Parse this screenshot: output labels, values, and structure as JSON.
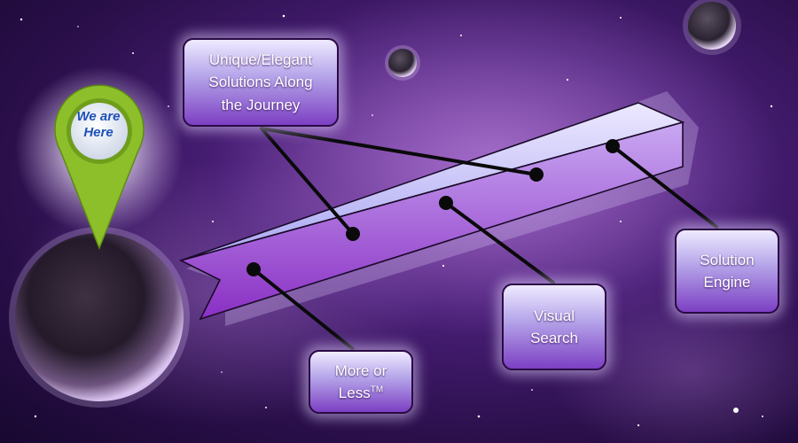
{
  "diagram": {
    "pin_label": "We are\nHere",
    "boxes": {
      "unique": "Unique/Elegant\nSolutions Along\nthe Journey",
      "more": "More or\nLess",
      "more_tm": "TM",
      "visual": "Visual\nSearch",
      "solution": "Solution\nEngine"
    }
  },
  "colors": {
    "background": "#3a1760",
    "box_top": "#efeaff",
    "box_bottom": "#7c3fc3",
    "pin_green": "#8cbf2a",
    "pin_text": "#1d50b8",
    "connector": "#0a0a0a"
  },
  "icons": [
    "location-pin-icon",
    "planet-icon",
    "moon-icon"
  ]
}
